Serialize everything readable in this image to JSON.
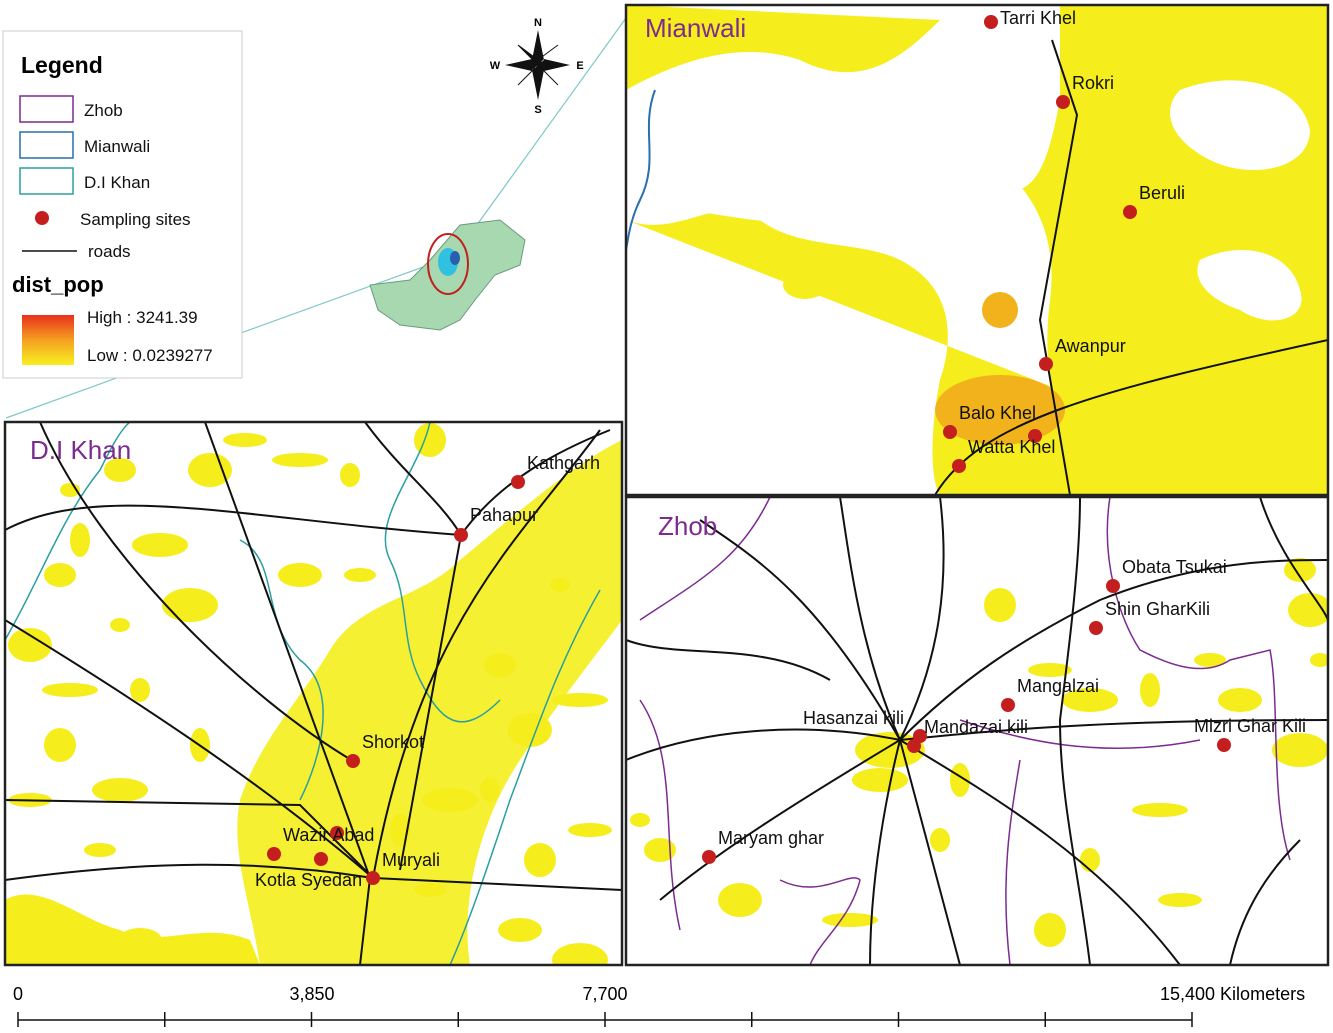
{
  "legend": {
    "title": "Legend",
    "items": [
      "Zhob",
      "Mianwali",
      "D.I Khan",
      "Sampling sites",
      "roads"
    ],
    "raster_title": "dist_pop",
    "high": "High : 3241.39",
    "low": "Low : 0.0239277"
  },
  "compass": {
    "n": "N",
    "s": "S",
    "e": "E",
    "w": "W"
  },
  "panels": [
    {
      "title": "Mianwali",
      "sites": [
        "Tarri Khel",
        "Rokri",
        "Beruli",
        "Awanpur",
        "Balo Khel",
        "Watta Khel"
      ]
    },
    {
      "title": "D.I Khan",
      "sites": [
        "Kathgarh",
        "Pahapur",
        "Shorkot",
        "Wazir Abad",
        "Muryali",
        "Kotla Syedan"
      ]
    },
    {
      "title": "Zhob",
      "sites": [
        "Obata Tsukai",
        "Shin GharKili",
        "Mangalzai",
        "Hasanzai kili",
        "Mandazai kili",
        "Mizri Ghar Kili",
        "Maryam ghar"
      ]
    }
  ],
  "scale_bar": {
    "labels": [
      "0",
      "3,850",
      "7,700",
      "15,400 Kilometers"
    ]
  }
}
